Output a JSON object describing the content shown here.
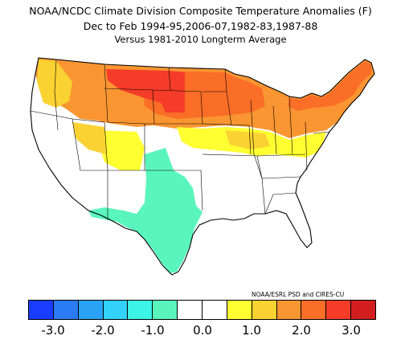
{
  "title": {
    "line1": "NOAA/NCDC Climate Division Composite Temperature Anomalies (F)",
    "line2": "Dec to Feb  1994-95,2006-07,1982-83,1987-88",
    "line3": "Versus 1981-2010 Longterm Average"
  },
  "credit": "NOAA/ESRL PSD and CIRES-CU",
  "legend": {
    "colors": [
      "#1a3cff",
      "#2a7bf5",
      "#2aa2f5",
      "#32d2fa",
      "#3cf5e6",
      "#5af5be",
      "#ffffff",
      "#ffffff",
      "#ffff32",
      "#fad232",
      "#fa9632",
      "#fa6e28",
      "#f53c28",
      "#d21e1e"
    ],
    "ticks": [
      "-3.0",
      "-2.0",
      "-1.0",
      "0.0",
      "1.0",
      "2.0",
      "3.0"
    ]
  },
  "map_regions": {
    "neutral_white": "#ffffff",
    "above_yellow": "#ffff32",
    "above_gold": "#fad232",
    "above_orange": "#fa9632",
    "above_dark_orange": "#fa6e28",
    "above_red": "#f53c28",
    "below_teal": "#5af5be"
  }
}
